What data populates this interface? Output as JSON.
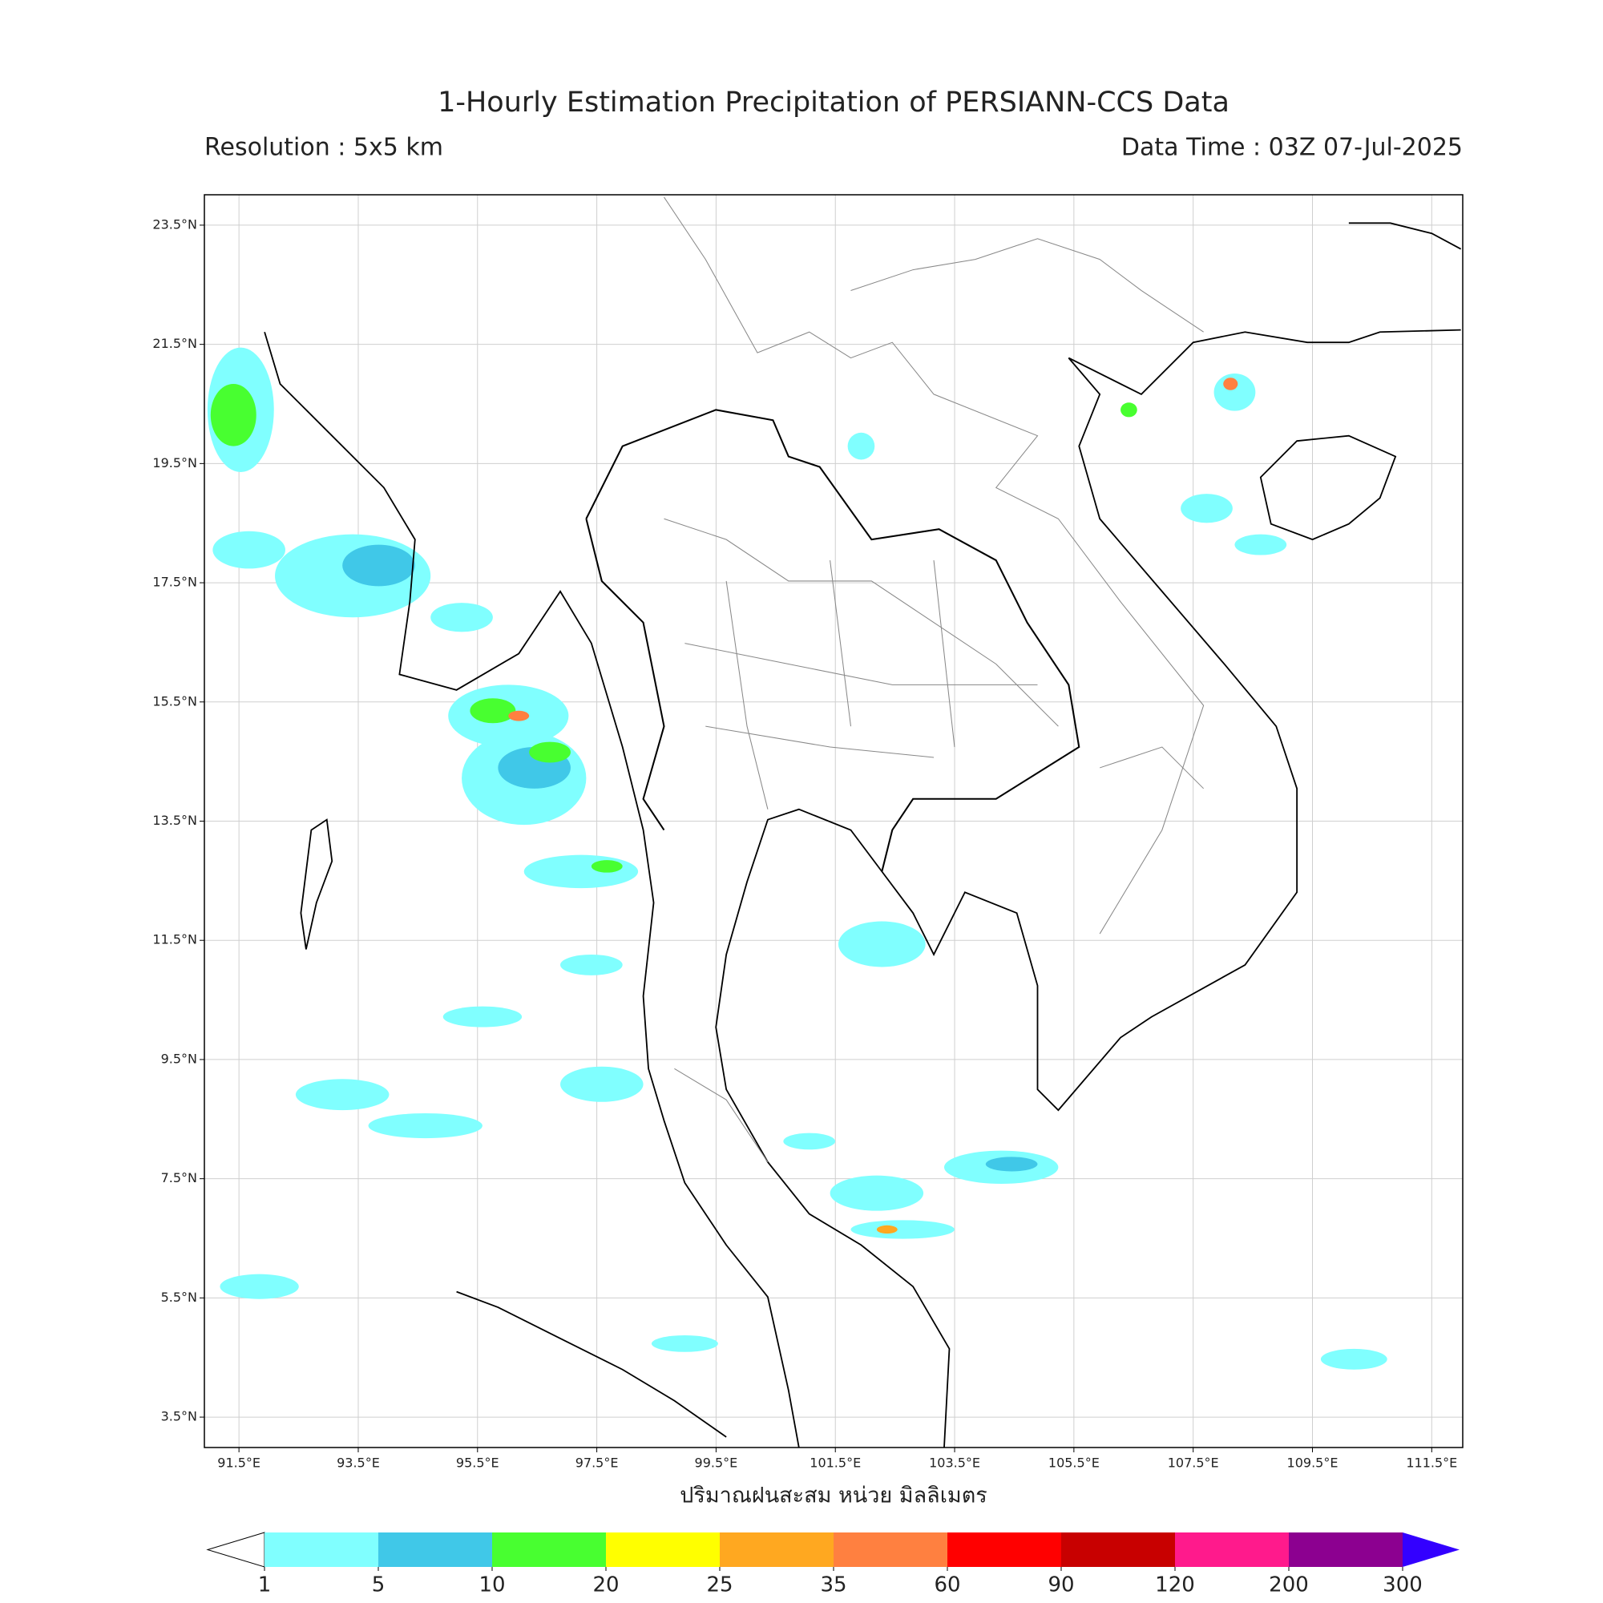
{
  "title": "1-Hourly Estimation Precipitation of PERSIANN-CCS Data",
  "resolution": "Resolution : 5x5 km",
  "data_time": "Data Time : 03Z 07-Jul-2025",
  "map": {
    "lonlim": [
      90.92,
      112.02
    ],
    "latlim": [
      2.99,
      24.01
    ],
    "grid": true,
    "lonticks": [
      {
        "value": 91.5,
        "label": "91.5°E"
      },
      {
        "value": 93.5,
        "label": "93.5°E"
      },
      {
        "value": 95.5,
        "label": "95.5°E"
      },
      {
        "value": 97.5,
        "label": "97.5°E"
      },
      {
        "value": 99.5,
        "label": "99.5°E"
      },
      {
        "value": 101.5,
        "label": "101.5°E"
      },
      {
        "value": 103.5,
        "label": "103.5°E"
      },
      {
        "value": 105.5,
        "label": "105.5°E"
      },
      {
        "value": 107.5,
        "label": "107.5°E"
      },
      {
        "value": 109.5,
        "label": "109.5°E"
      },
      {
        "value": 111.5,
        "label": "111.5°E"
      }
    ],
    "latticks": [
      {
        "value": 23.5,
        "label": "23.5°N"
      },
      {
        "value": 21.5,
        "label": "21.5°N"
      },
      {
        "value": 19.5,
        "label": "19.5°N"
      },
      {
        "value": 17.5,
        "label": "17.5°N"
      },
      {
        "value": 15.5,
        "label": "15.5°N"
      },
      {
        "value": 13.5,
        "label": "13.5°N"
      },
      {
        "value": 11.5,
        "label": "11.5°N"
      },
      {
        "value": 9.5,
        "label": "9.5°N"
      },
      {
        "value": 7.5,
        "label": "7.5°N"
      },
      {
        "value": 5.5,
        "label": "5.5°N"
      },
      {
        "value": 3.5,
        "label": "3.5°N"
      }
    ]
  },
  "colorbar": {
    "label": "ปริมาณฝนสะสม หน่วย มิลลิเมตร",
    "levels": [
      1,
      5,
      10,
      20,
      25,
      35,
      60,
      90,
      120,
      200,
      300
    ],
    "colors": [
      "#80ffff",
      "#40c8e8",
      "#48ff30",
      "#ffff00",
      "#ffa820",
      "#ff8040",
      "#ff0000",
      "#c80000",
      "#ff1a8c",
      "#8c0090"
    ],
    "under_color": "#ffffff",
    "over_color": "#3300ff"
  }
}
